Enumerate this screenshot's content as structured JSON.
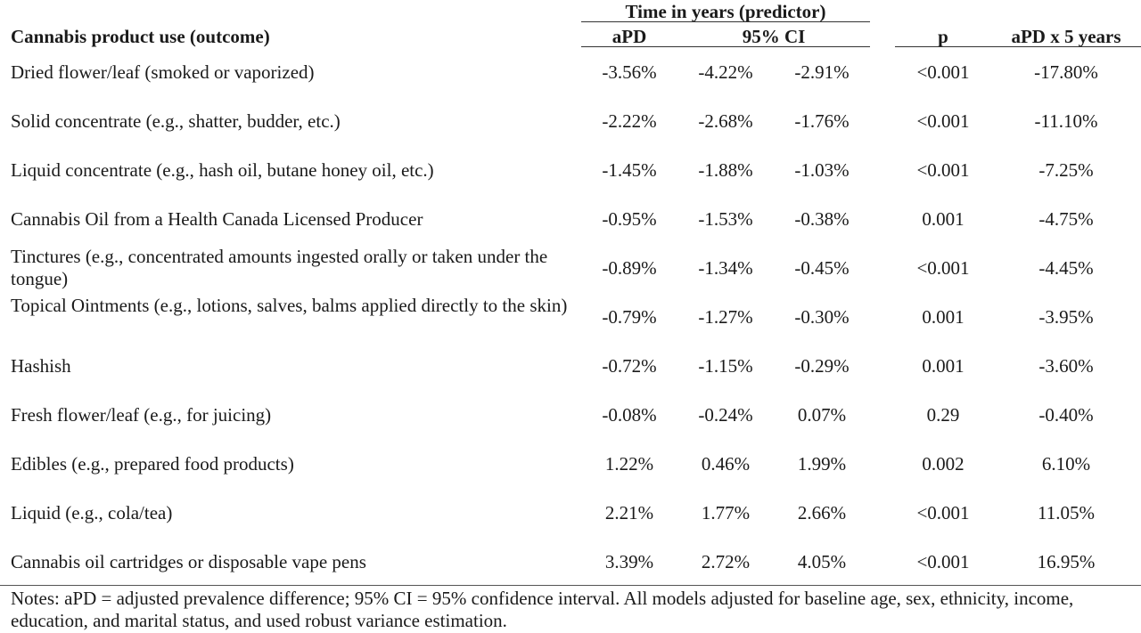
{
  "table": {
    "group_header": "Time in years (predictor)",
    "headers": {
      "outcome": "Cannabis product use (outcome)",
      "apd": "aPD",
      "ci": "95% CI",
      "p": "p",
      "apd5": "aPD x 5 years"
    },
    "rows": [
      {
        "label": "Dried flower/leaf (smoked or vaporized)",
        "apd": "-3.56%",
        "ci_low": "-4.22%",
        "ci_high": "-2.91%",
        "p": "<0.001",
        "apd5": "-17.80%"
      },
      {
        "label": "Solid concentrate (e.g., shatter, budder, etc.)",
        "apd": "-2.22%",
        "ci_low": "-2.68%",
        "ci_high": "-1.76%",
        "p": "<0.001",
        "apd5": "-11.10%"
      },
      {
        "label": "Liquid concentrate (e.g., hash oil, butane honey oil, etc.)",
        "apd": "-1.45%",
        "ci_low": "-1.88%",
        "ci_high": "-1.03%",
        "p": "<0.001",
        "apd5": "-7.25%"
      },
      {
        "label": "Cannabis Oil from a Health Canada Licensed Producer",
        "apd": "-0.95%",
        "ci_low": "-1.53%",
        "ci_high": "-0.38%",
        "p": "0.001",
        "apd5": "-4.75%"
      },
      {
        "label": "Tinctures (e.g., concentrated amounts ingested orally or taken under the tongue)",
        "apd": "-0.89%",
        "ci_low": "-1.34%",
        "ci_high": "-0.45%",
        "p": "<0.001",
        "apd5": "-4.45%"
      },
      {
        "label": "Topical Ointments (e.g., lotions, salves, balms applied directly to the skin)",
        "apd": "-0.79%",
        "ci_low": "-1.27%",
        "ci_high": "-0.30%",
        "p": "0.001",
        "apd5": "-3.95%"
      },
      {
        "label": "Hashish",
        "apd": "-0.72%",
        "ci_low": "-1.15%",
        "ci_high": "-0.29%",
        "p": "0.001",
        "apd5": "-3.60%"
      },
      {
        "label": "Fresh flower/leaf (e.g., for juicing)",
        "apd": "-0.08%",
        "ci_low": "-0.24%",
        "ci_high": "0.07%",
        "p": "0.29",
        "apd5": "-0.40%"
      },
      {
        "label": "Edibles (e.g., prepared food products)",
        "apd": "1.22%",
        "ci_low": "0.46%",
        "ci_high": "1.99%",
        "p": "0.002",
        "apd5": "6.10%"
      },
      {
        "label": "Liquid (e.g., cola/tea)",
        "apd": "2.21%",
        "ci_low": "1.77%",
        "ci_high": "2.66%",
        "p": "<0.001",
        "apd5": "11.05%"
      },
      {
        "label": "Cannabis oil cartridges or disposable vape pens",
        "apd": "3.39%",
        "ci_low": "2.72%",
        "ci_high": "4.05%",
        "p": "<0.001",
        "apd5": "16.95%"
      }
    ],
    "notes": "Notes: aPD = adjusted prevalence difference; 95% CI = 95% confidence interval. All models adjusted for baseline age, sex, ethnicity, income, education, and marital status, and used robust variance estimation."
  }
}
